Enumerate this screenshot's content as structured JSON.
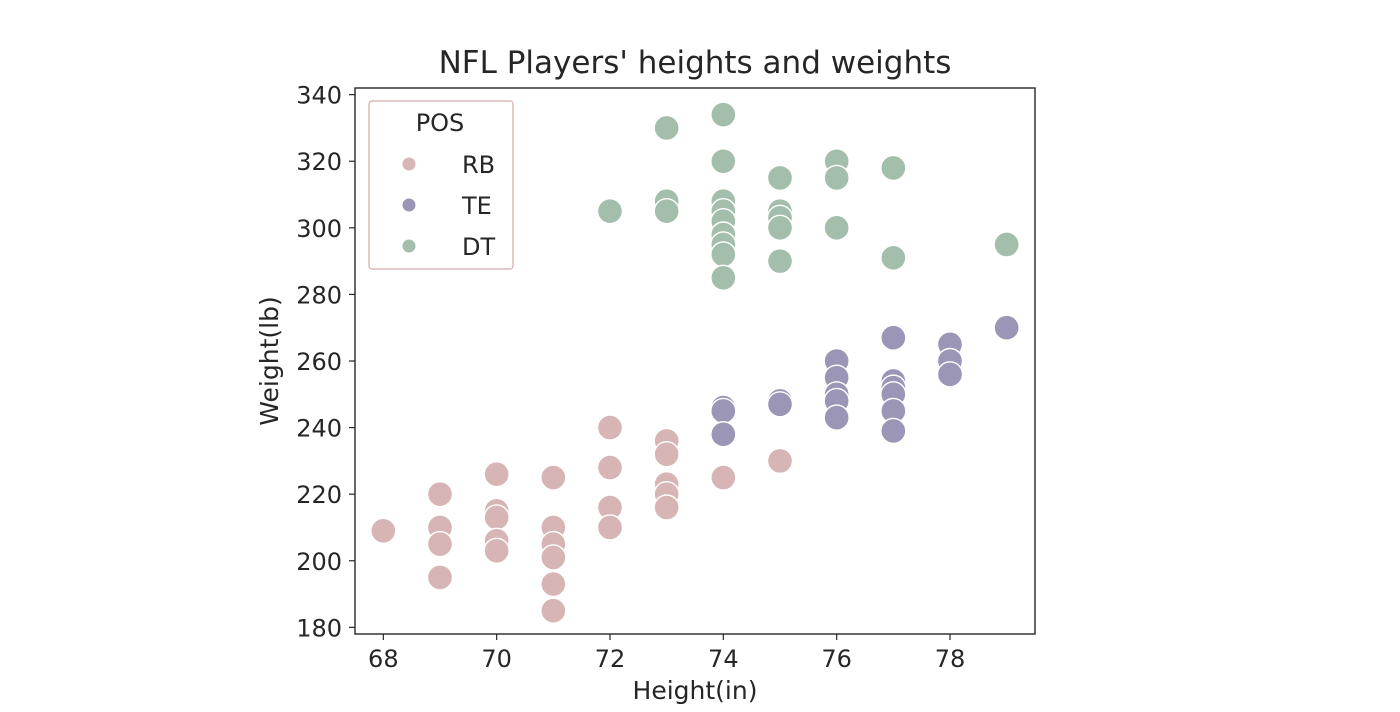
{
  "chart_data": {
    "type": "scatter",
    "title": "NFL Players' heights and weights",
    "xlabel": "Height(in)",
    "ylabel": "Weight(lb)",
    "xlim": [
      67.5,
      79.5
    ],
    "ylim": [
      178,
      342
    ],
    "xticks": [
      "68",
      "70",
      "72",
      "74",
      "76",
      "78"
    ],
    "yticks": [
      "180",
      "200",
      "220",
      "240",
      "260",
      "280",
      "300",
      "320",
      "340"
    ],
    "grid": false,
    "legend": {
      "title": "POS",
      "placement": "top-left",
      "entries": [
        "RB",
        "TE",
        "DT"
      ]
    },
    "colors": {
      "RB": "#d8b5b5",
      "TE": "#9b96b6",
      "DT": "#a3bfac"
    },
    "series": [
      {
        "name": "RB",
        "points": [
          [
            68,
            209
          ],
          [
            69,
            220
          ],
          [
            69,
            210
          ],
          [
            69,
            205
          ],
          [
            69,
            195
          ],
          [
            70,
            226
          ],
          [
            70,
            215
          ],
          [
            70,
            213
          ],
          [
            70,
            206
          ],
          [
            70,
            203
          ],
          [
            71,
            225
          ],
          [
            71,
            210
          ],
          [
            71,
            205
          ],
          [
            71,
            201
          ],
          [
            71,
            193
          ],
          [
            71,
            185
          ],
          [
            72,
            240
          ],
          [
            72,
            228
          ],
          [
            72,
            216
          ],
          [
            72,
            210
          ],
          [
            73,
            236
          ],
          [
            73,
            232
          ],
          [
            73,
            223
          ],
          [
            73,
            220
          ],
          [
            73,
            216
          ],
          [
            74,
            225
          ],
          [
            75,
            230
          ]
        ]
      },
      {
        "name": "TE",
        "points": [
          [
            74,
            246
          ],
          [
            74,
            245
          ],
          [
            74,
            238
          ],
          [
            75,
            248
          ],
          [
            75,
            247
          ],
          [
            76,
            260
          ],
          [
            76,
            255
          ],
          [
            76,
            250
          ],
          [
            76,
            248
          ],
          [
            76,
            243
          ],
          [
            77,
            267
          ],
          [
            77,
            254
          ],
          [
            77,
            252
          ],
          [
            77,
            250
          ],
          [
            77,
            245
          ],
          [
            77,
            239
          ],
          [
            78,
            265
          ],
          [
            78,
            260
          ],
          [
            78,
            256
          ],
          [
            79,
            270
          ]
        ]
      },
      {
        "name": "DT",
        "points": [
          [
            72,
            305
          ],
          [
            73,
            330
          ],
          [
            73,
            308
          ],
          [
            73,
            305
          ],
          [
            74,
            334
          ],
          [
            74,
            320
          ],
          [
            74,
            308
          ],
          [
            74,
            305
          ],
          [
            74,
            302
          ],
          [
            74,
            298
          ],
          [
            74,
            295
          ],
          [
            74,
            292
          ],
          [
            74,
            285
          ],
          [
            75,
            315
          ],
          [
            75,
            305
          ],
          [
            75,
            303
          ],
          [
            75,
            300
          ],
          [
            75,
            290
          ],
          [
            76,
            320
          ],
          [
            76,
            315
          ],
          [
            76,
            300
          ],
          [
            77,
            318
          ],
          [
            77,
            291
          ],
          [
            79,
            295
          ]
        ]
      }
    ]
  }
}
